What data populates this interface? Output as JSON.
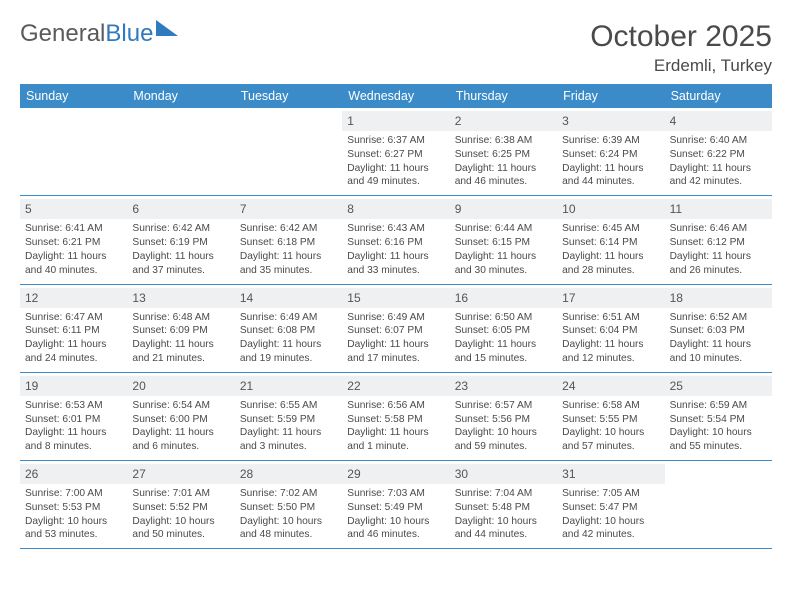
{
  "brand": {
    "part1": "General",
    "part2": "Blue"
  },
  "title": "October 2025",
  "location": "Erdemli, Turkey",
  "header_bg": "#3b8bc8",
  "day_headers": [
    "Sunday",
    "Monday",
    "Tuesday",
    "Wednesday",
    "Thursday",
    "Friday",
    "Saturday"
  ],
  "weeks": [
    [
      {
        "day": "",
        "lines": []
      },
      {
        "day": "",
        "lines": []
      },
      {
        "day": "",
        "lines": []
      },
      {
        "day": "1",
        "lines": [
          "Sunrise: 6:37 AM",
          "Sunset: 6:27 PM",
          "Daylight: 11 hours",
          "and 49 minutes."
        ]
      },
      {
        "day": "2",
        "lines": [
          "Sunrise: 6:38 AM",
          "Sunset: 6:25 PM",
          "Daylight: 11 hours",
          "and 46 minutes."
        ]
      },
      {
        "day": "3",
        "lines": [
          "Sunrise: 6:39 AM",
          "Sunset: 6:24 PM",
          "Daylight: 11 hours",
          "and 44 minutes."
        ]
      },
      {
        "day": "4",
        "lines": [
          "Sunrise: 6:40 AM",
          "Sunset: 6:22 PM",
          "Daylight: 11 hours",
          "and 42 minutes."
        ]
      }
    ],
    [
      {
        "day": "5",
        "lines": [
          "Sunrise: 6:41 AM",
          "Sunset: 6:21 PM",
          "Daylight: 11 hours",
          "and 40 minutes."
        ]
      },
      {
        "day": "6",
        "lines": [
          "Sunrise: 6:42 AM",
          "Sunset: 6:19 PM",
          "Daylight: 11 hours",
          "and 37 minutes."
        ]
      },
      {
        "day": "7",
        "lines": [
          "Sunrise: 6:42 AM",
          "Sunset: 6:18 PM",
          "Daylight: 11 hours",
          "and 35 minutes."
        ]
      },
      {
        "day": "8",
        "lines": [
          "Sunrise: 6:43 AM",
          "Sunset: 6:16 PM",
          "Daylight: 11 hours",
          "and 33 minutes."
        ]
      },
      {
        "day": "9",
        "lines": [
          "Sunrise: 6:44 AM",
          "Sunset: 6:15 PM",
          "Daylight: 11 hours",
          "and 30 minutes."
        ]
      },
      {
        "day": "10",
        "lines": [
          "Sunrise: 6:45 AM",
          "Sunset: 6:14 PM",
          "Daylight: 11 hours",
          "and 28 minutes."
        ]
      },
      {
        "day": "11",
        "lines": [
          "Sunrise: 6:46 AM",
          "Sunset: 6:12 PM",
          "Daylight: 11 hours",
          "and 26 minutes."
        ]
      }
    ],
    [
      {
        "day": "12",
        "lines": [
          "Sunrise: 6:47 AM",
          "Sunset: 6:11 PM",
          "Daylight: 11 hours",
          "and 24 minutes."
        ]
      },
      {
        "day": "13",
        "lines": [
          "Sunrise: 6:48 AM",
          "Sunset: 6:09 PM",
          "Daylight: 11 hours",
          "and 21 minutes."
        ]
      },
      {
        "day": "14",
        "lines": [
          "Sunrise: 6:49 AM",
          "Sunset: 6:08 PM",
          "Daylight: 11 hours",
          "and 19 minutes."
        ]
      },
      {
        "day": "15",
        "lines": [
          "Sunrise: 6:49 AM",
          "Sunset: 6:07 PM",
          "Daylight: 11 hours",
          "and 17 minutes."
        ]
      },
      {
        "day": "16",
        "lines": [
          "Sunrise: 6:50 AM",
          "Sunset: 6:05 PM",
          "Daylight: 11 hours",
          "and 15 minutes."
        ]
      },
      {
        "day": "17",
        "lines": [
          "Sunrise: 6:51 AM",
          "Sunset: 6:04 PM",
          "Daylight: 11 hours",
          "and 12 minutes."
        ]
      },
      {
        "day": "18",
        "lines": [
          "Sunrise: 6:52 AM",
          "Sunset: 6:03 PM",
          "Daylight: 11 hours",
          "and 10 minutes."
        ]
      }
    ],
    [
      {
        "day": "19",
        "lines": [
          "Sunrise: 6:53 AM",
          "Sunset: 6:01 PM",
          "Daylight: 11 hours",
          "and 8 minutes."
        ]
      },
      {
        "day": "20",
        "lines": [
          "Sunrise: 6:54 AM",
          "Sunset: 6:00 PM",
          "Daylight: 11 hours",
          "and 6 minutes."
        ]
      },
      {
        "day": "21",
        "lines": [
          "Sunrise: 6:55 AM",
          "Sunset: 5:59 PM",
          "Daylight: 11 hours",
          "and 3 minutes."
        ]
      },
      {
        "day": "22",
        "lines": [
          "Sunrise: 6:56 AM",
          "Sunset: 5:58 PM",
          "Daylight: 11 hours",
          "and 1 minute."
        ]
      },
      {
        "day": "23",
        "lines": [
          "Sunrise: 6:57 AM",
          "Sunset: 5:56 PM",
          "Daylight: 10 hours",
          "and 59 minutes."
        ]
      },
      {
        "day": "24",
        "lines": [
          "Sunrise: 6:58 AM",
          "Sunset: 5:55 PM",
          "Daylight: 10 hours",
          "and 57 minutes."
        ]
      },
      {
        "day": "25",
        "lines": [
          "Sunrise: 6:59 AM",
          "Sunset: 5:54 PM",
          "Daylight: 10 hours",
          "and 55 minutes."
        ]
      }
    ],
    [
      {
        "day": "26",
        "lines": [
          "Sunrise: 7:00 AM",
          "Sunset: 5:53 PM",
          "Daylight: 10 hours",
          "and 53 minutes."
        ]
      },
      {
        "day": "27",
        "lines": [
          "Sunrise: 7:01 AM",
          "Sunset: 5:52 PM",
          "Daylight: 10 hours",
          "and 50 minutes."
        ]
      },
      {
        "day": "28",
        "lines": [
          "Sunrise: 7:02 AM",
          "Sunset: 5:50 PM",
          "Daylight: 10 hours",
          "and 48 minutes."
        ]
      },
      {
        "day": "29",
        "lines": [
          "Sunrise: 7:03 AM",
          "Sunset: 5:49 PM",
          "Daylight: 10 hours",
          "and 46 minutes."
        ]
      },
      {
        "day": "30",
        "lines": [
          "Sunrise: 7:04 AM",
          "Sunset: 5:48 PM",
          "Daylight: 10 hours",
          "and 44 minutes."
        ]
      },
      {
        "day": "31",
        "lines": [
          "Sunrise: 7:05 AM",
          "Sunset: 5:47 PM",
          "Daylight: 10 hours",
          "and 42 minutes."
        ]
      },
      {
        "day": "",
        "lines": []
      }
    ]
  ]
}
